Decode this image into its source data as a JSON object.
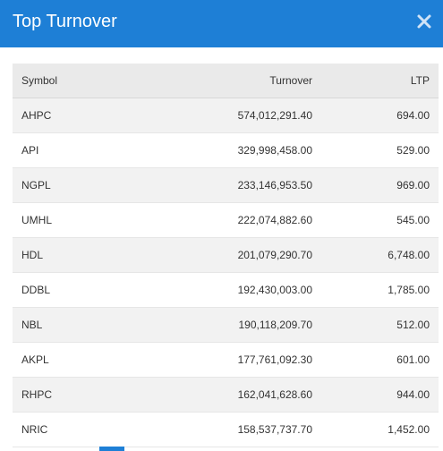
{
  "modal": {
    "title": "Top Turnover",
    "close_icon": "close-icon",
    "accent_color": "#1e7fd6"
  },
  "table": {
    "columns": {
      "symbol": "Symbol",
      "turnover": "Turnover",
      "ltp": "LTP"
    },
    "rows": [
      {
        "symbol": "AHPC",
        "turnover": "574,012,291.40",
        "ltp": "694.00"
      },
      {
        "symbol": "API",
        "turnover": "329,998,458.00",
        "ltp": "529.00"
      },
      {
        "symbol": "NGPL",
        "turnover": "233,146,953.50",
        "ltp": "969.00"
      },
      {
        "symbol": "UMHL",
        "turnover": "222,074,882.60",
        "ltp": "545.00"
      },
      {
        "symbol": "HDL",
        "turnover": "201,079,290.70",
        "ltp": "6,748.00"
      },
      {
        "symbol": "DDBL",
        "turnover": "192,430,003.00",
        "ltp": "1,785.00"
      },
      {
        "symbol": "NBL",
        "turnover": "190,118,209.70",
        "ltp": "512.00"
      },
      {
        "symbol": "AKPL",
        "turnover": "177,761,092.30",
        "ltp": "601.00"
      },
      {
        "symbol": "RHPC",
        "turnover": "162,041,628.60",
        "ltp": "944.00"
      },
      {
        "symbol": "NRIC",
        "turnover": "158,537,737.70",
        "ltp": "1,452.00"
      }
    ]
  }
}
